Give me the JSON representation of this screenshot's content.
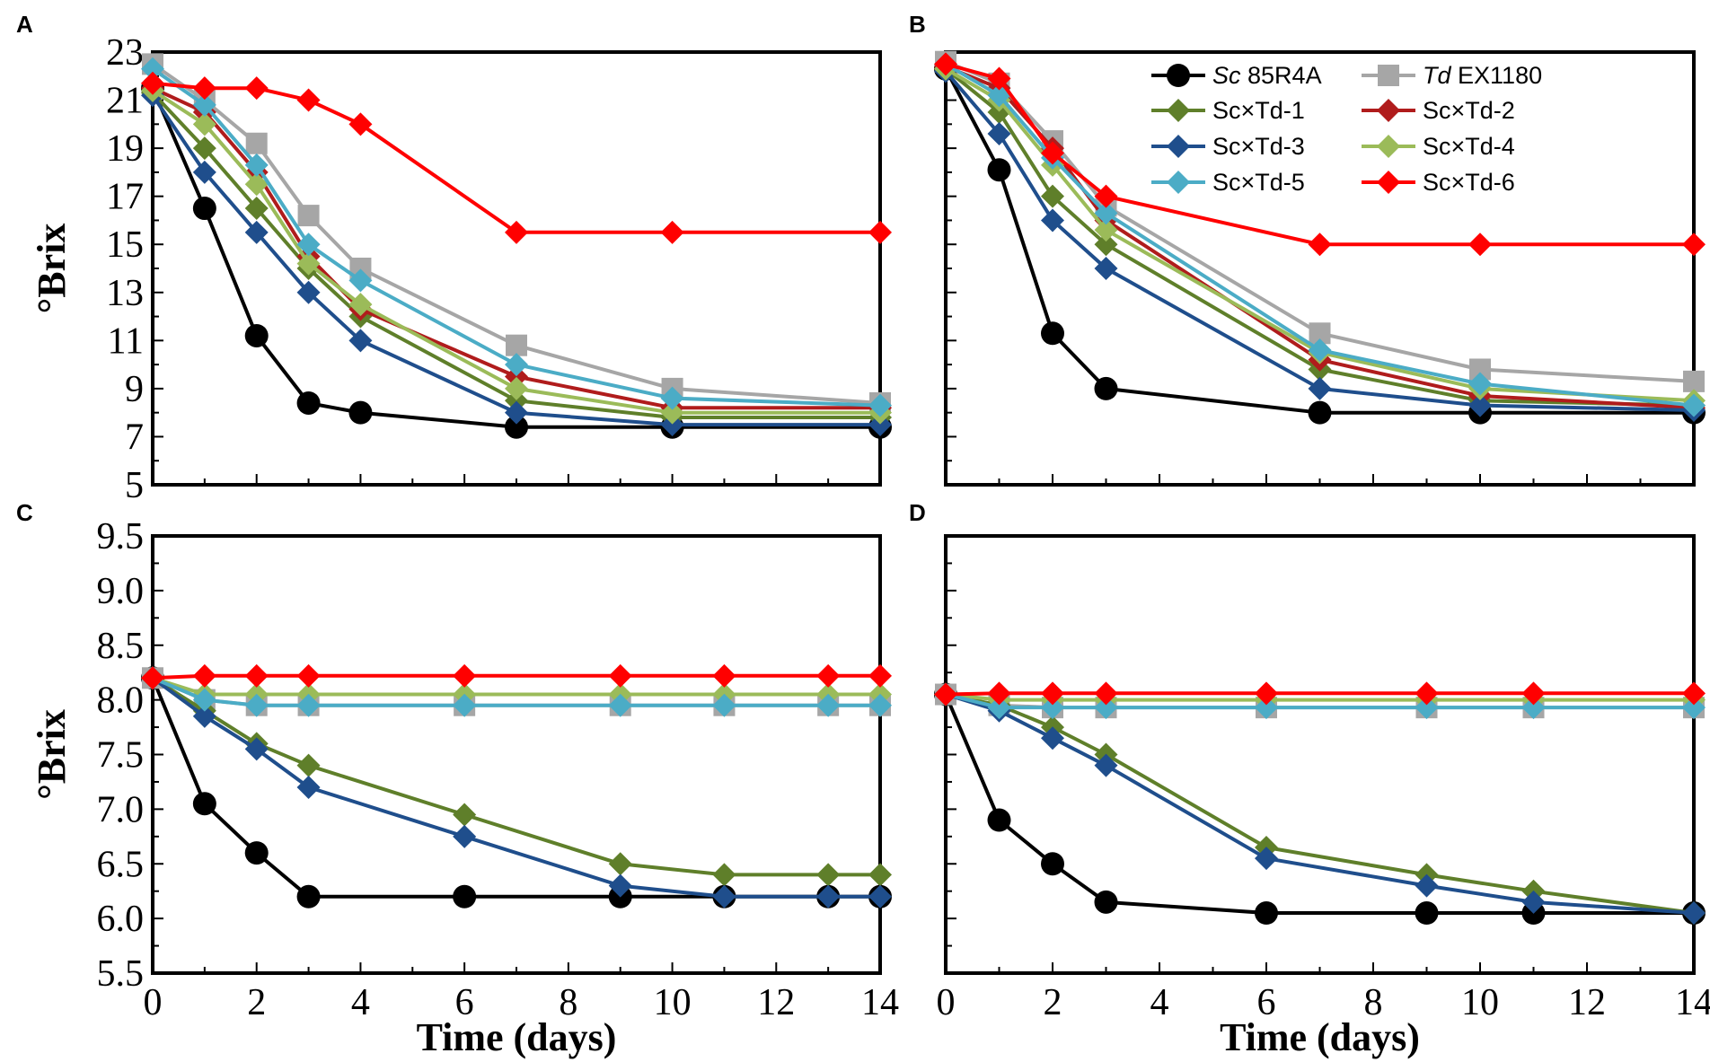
{
  "figure": {
    "panel_letters": [
      "A",
      "B",
      "C",
      "D"
    ]
  },
  "legend": {
    "entries": [
      {
        "prefix": "Sc",
        "suffix": " 85R4A"
      },
      {
        "prefix": "Td",
        "suffix": " EX1180"
      },
      {
        "prefix": "",
        "suffix": "Sc×Td-1"
      },
      {
        "prefix": "",
        "suffix": "Sc×Td-2"
      },
      {
        "prefix": "",
        "suffix": "Sc×Td-3"
      },
      {
        "prefix": "",
        "suffix": "Sc×Td-4"
      },
      {
        "prefix": "",
        "suffix": "Sc×Td-5"
      },
      {
        "prefix": "",
        "suffix": "Sc×Td-6"
      }
    ]
  },
  "chart_data": [
    {
      "panel": "A",
      "type": "line",
      "xlabel": "",
      "ylabel": "°Brix",
      "xlim": [
        0,
        14
      ],
      "ylim": [
        5,
        23
      ],
      "yticks": [
        "5",
        "7",
        "9",
        "11",
        "13",
        "15",
        "17",
        "19",
        "21",
        "23"
      ],
      "xticks": [],
      "x": [
        0,
        1,
        2,
        3,
        4,
        7,
        10,
        14
      ],
      "series": [
        {
          "name": "Sc 85R4A",
          "color": "#000000",
          "marker": "circle",
          "values": [
            21.5,
            16.5,
            11.2,
            8.4,
            8.0,
            7.4,
            7.4,
            7.4
          ]
        },
        {
          "name": "Td EX1180",
          "color": "#a6a6a6",
          "marker": "square",
          "values": [
            22.5,
            21.0,
            19.2,
            16.2,
            14.0,
            10.8,
            9.0,
            8.4
          ]
        },
        {
          "name": "Sc×Td-1",
          "color": "#5f7f2a",
          "marker": "diamond",
          "values": [
            21.3,
            19.0,
            16.5,
            14.0,
            12.0,
            8.5,
            7.8,
            7.8
          ]
        },
        {
          "name": "Sc×Td-2",
          "color": "#b01c1c",
          "marker": "diamond",
          "values": [
            21.5,
            20.5,
            18.0,
            14.5,
            12.3,
            9.5,
            8.2,
            8.2
          ]
        },
        {
          "name": "Sc×Td-3",
          "color": "#1f4e8c",
          "marker": "diamond",
          "values": [
            21.2,
            18.0,
            15.5,
            13.0,
            11.0,
            8.0,
            7.5,
            7.5
          ]
        },
        {
          "name": "Sc×Td-4",
          "color": "#9bbb59",
          "marker": "diamond",
          "values": [
            21.4,
            20.0,
            17.5,
            14.2,
            12.5,
            9.0,
            8.0,
            8.0
          ]
        },
        {
          "name": "Sc×Td-5",
          "color": "#4bacc6",
          "marker": "diamond",
          "values": [
            22.3,
            20.8,
            18.3,
            15.0,
            13.5,
            10.0,
            8.6,
            8.3
          ]
        },
        {
          "name": "Sc×Td-6",
          "color": "#ff0000",
          "marker": "diamond",
          "values": [
            21.7,
            21.5,
            21.5,
            21.0,
            20.0,
            15.5,
            15.5,
            15.5
          ]
        }
      ]
    },
    {
      "panel": "B",
      "type": "line",
      "xlabel": "",
      "ylabel": "",
      "xlim": [
        0,
        14
      ],
      "ylim": [
        5,
        23
      ],
      "yticks": [],
      "xticks": [],
      "x": [
        0,
        1,
        2,
        3,
        7,
        10,
        14
      ],
      "series": [
        {
          "name": "Sc 85R4A",
          "color": "#000000",
          "marker": "circle",
          "values": [
            22.3,
            18.1,
            11.3,
            9.0,
            8.0,
            8.0,
            8.0
          ]
        },
        {
          "name": "Td EX1180",
          "color": "#a6a6a6",
          "marker": "square",
          "values": [
            22.6,
            21.7,
            19.3,
            16.6,
            11.3,
            9.8,
            9.3
          ]
        },
        {
          "name": "Sc×Td-1",
          "color": "#5f7f2a",
          "marker": "diamond",
          "values": [
            22.3,
            20.5,
            17.0,
            15.0,
            9.8,
            8.5,
            8.3
          ]
        },
        {
          "name": "Sc×Td-2",
          "color": "#b01c1c",
          "marker": "diamond",
          "values": [
            22.4,
            21.5,
            19.0,
            16.0,
            10.2,
            8.7,
            8.2
          ]
        },
        {
          "name": "Sc×Td-3",
          "color": "#1f4e8c",
          "marker": "diamond",
          "values": [
            22.2,
            19.6,
            16.0,
            14.0,
            9.0,
            8.3,
            8.1
          ]
        },
        {
          "name": "Sc×Td-4",
          "color": "#9bbb59",
          "marker": "diamond",
          "values": [
            22.3,
            21.0,
            18.3,
            15.6,
            10.5,
            9.0,
            8.5
          ]
        },
        {
          "name": "Sc×Td-5",
          "color": "#4bacc6",
          "marker": "diamond",
          "values": [
            22.5,
            21.2,
            18.6,
            16.3,
            10.6,
            9.2,
            8.3
          ]
        },
        {
          "name": "Sc×Td-6",
          "color": "#ff0000",
          "marker": "diamond",
          "values": [
            22.5,
            21.9,
            18.8,
            17.0,
            15.0,
            15.0,
            15.0
          ]
        }
      ]
    },
    {
      "panel": "C",
      "type": "line",
      "xlabel": "Time (days)",
      "ylabel": "°Brix",
      "xlim": [
        0,
        14
      ],
      "ylim": [
        5.5,
        9.5
      ],
      "yticks": [
        "5.5",
        "6.0",
        "6.5",
        "7.0",
        "7.5",
        "8.0",
        "8.5",
        "9.0",
        "9.5"
      ],
      "xticks": [
        "0",
        "2",
        "4",
        "6",
        "8",
        "10",
        "12",
        "14"
      ],
      "x": [
        0,
        1,
        2,
        3,
        6,
        9,
        11,
        13,
        14
      ],
      "series": [
        {
          "name": "Sc 85R4A",
          "color": "#000000",
          "marker": "circle",
          "values": [
            8.2,
            7.05,
            6.6,
            6.2,
            6.2,
            6.2,
            6.2,
            6.2,
            6.2
          ]
        },
        {
          "name": "Td EX1180",
          "color": "#a6a6a6",
          "marker": "square",
          "values": [
            8.2,
            8.0,
            7.95,
            7.95,
            7.95,
            7.95,
            7.95,
            7.95,
            7.95
          ]
        },
        {
          "name": "Sc×Td-1",
          "color": "#5f7f2a",
          "marker": "diamond",
          "values": [
            8.2,
            7.9,
            7.6,
            7.4,
            6.95,
            6.5,
            6.4,
            6.4,
            6.4
          ]
        },
        {
          "name": "Sc×Td-3",
          "color": "#1f4e8c",
          "marker": "diamond",
          "values": [
            8.2,
            7.85,
            7.55,
            7.2,
            6.75,
            6.3,
            6.2,
            6.2,
            6.2
          ]
        },
        {
          "name": "Sc×Td-4",
          "color": "#9bbb59",
          "marker": "diamond",
          "values": [
            8.2,
            8.05,
            8.05,
            8.05,
            8.05,
            8.05,
            8.05,
            8.05,
            8.05
          ]
        },
        {
          "name": "Sc×Td-5",
          "color": "#4bacc6",
          "marker": "diamond",
          "values": [
            8.2,
            8.0,
            7.95,
            7.95,
            7.95,
            7.95,
            7.95,
            7.95,
            7.95
          ]
        },
        {
          "name": "Sc×Td-6",
          "color": "#ff0000",
          "marker": "diamond",
          "values": [
            8.2,
            8.22,
            8.22,
            8.22,
            8.22,
            8.22,
            8.22,
            8.22,
            8.22
          ]
        }
      ]
    },
    {
      "panel": "D",
      "type": "line",
      "xlabel": "Time (days)",
      "ylabel": "",
      "xlim": [
        0,
        14
      ],
      "ylim": [
        5.5,
        9.5
      ],
      "yticks": [],
      "xticks": [
        "0",
        "2",
        "4",
        "6",
        "8",
        "10",
        "12",
        "14"
      ],
      "x": [
        0,
        1,
        2,
        3,
        6,
        9,
        11,
        14
      ],
      "series": [
        {
          "name": "Sc 85R4A",
          "color": "#000000",
          "marker": "circle",
          "values": [
            8.05,
            6.9,
            6.5,
            6.15,
            6.05,
            6.05,
            6.05,
            6.05
          ]
        },
        {
          "name": "Td EX1180",
          "color": "#a6a6a6",
          "marker": "square",
          "values": [
            8.05,
            7.95,
            7.93,
            7.93,
            7.93,
            7.93,
            7.93,
            7.93
          ]
        },
        {
          "name": "Sc×Td-1",
          "color": "#5f7f2a",
          "marker": "diamond",
          "values": [
            8.05,
            7.95,
            7.75,
            7.5,
            6.65,
            6.4,
            6.25,
            6.05
          ]
        },
        {
          "name": "Sc×Td-3",
          "color": "#1f4e8c",
          "marker": "diamond",
          "values": [
            8.05,
            7.9,
            7.65,
            7.4,
            6.55,
            6.3,
            6.15,
            6.05
          ]
        },
        {
          "name": "Sc×Td-4",
          "color": "#9bbb59",
          "marker": "diamond",
          "values": [
            8.05,
            8.0,
            8.0,
            8.0,
            8.0,
            8.0,
            8.0,
            8.0
          ]
        },
        {
          "name": "Sc×Td-5",
          "color": "#4bacc6",
          "marker": "diamond",
          "values": [
            8.05,
            7.93,
            7.93,
            7.93,
            7.93,
            7.93,
            7.93,
            7.93
          ]
        },
        {
          "name": "Sc×Td-6",
          "color": "#ff0000",
          "marker": "diamond",
          "values": [
            8.05,
            8.06,
            8.06,
            8.06,
            8.06,
            8.06,
            8.06,
            8.06
          ]
        }
      ]
    }
  ]
}
